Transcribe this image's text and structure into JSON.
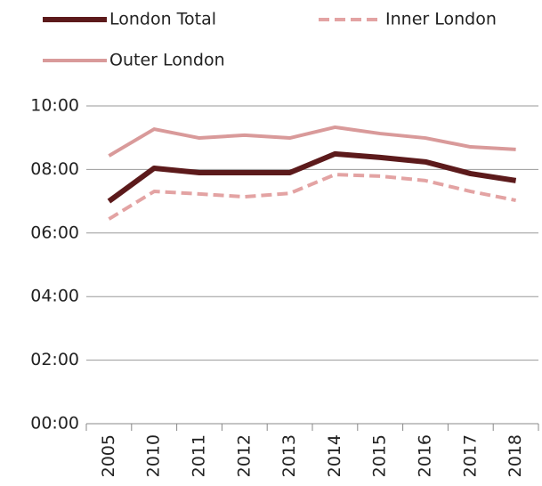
{
  "chart_data": {
    "type": "line",
    "categories": [
      "2005",
      "2010",
      "2011",
      "2012",
      "2013",
      "2014",
      "2015",
      "2016",
      "2017",
      "2018"
    ],
    "series": [
      {
        "name": "London Total",
        "color": "#5c1a1b",
        "style": "solid",
        "width": 6,
        "values": [
          7.0,
          8.04,
          7.9,
          7.9,
          7.9,
          8.49,
          8.38,
          8.24,
          7.87,
          7.65
        ]
      },
      {
        "name": "Inner London",
        "color": "#e3a3a3",
        "style": "dashed",
        "width": 4,
        "values": [
          6.44,
          7.31,
          7.23,
          7.14,
          7.25,
          7.84,
          7.79,
          7.65,
          7.31,
          7.03
        ]
      },
      {
        "name": "Outer London",
        "color": "#d99a9a",
        "style": "solid",
        "width": 4,
        "values": [
          8.43,
          9.27,
          8.99,
          9.08,
          8.99,
          9.33,
          9.13,
          8.99,
          8.71,
          8.63
        ]
      }
    ],
    "ylim": [
      0,
      10
    ],
    "yticks": [
      {
        "value": 0,
        "label": "00:00"
      },
      {
        "value": 2,
        "label": "02:00"
      },
      {
        "value": 4,
        "label": "04:00"
      },
      {
        "value": 6,
        "label": "06:00"
      },
      {
        "value": 8,
        "label": "08:00"
      },
      {
        "value": 10,
        "label": "10:00"
      }
    ],
    "grid": true,
    "legend": "top"
  }
}
